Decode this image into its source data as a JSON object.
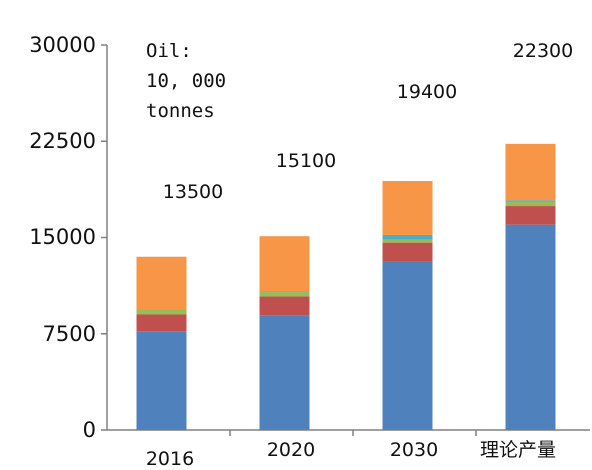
{
  "chart_data": {
    "type": "bar",
    "stacked": true,
    "categories": [
      "2016",
      "2020",
      "2030",
      "理论产量"
    ],
    "series": [
      {
        "values": [
          7700,
          8950,
          13100,
          16000
        ],
        "color": "#4f81bd"
      },
      {
        "values": [
          1300,
          1450,
          1500,
          1450
        ],
        "color": "#c0504d"
      },
      {
        "values": [
          350,
          350,
          250,
          350
        ],
        "color": "#9bbb59"
      },
      {
        "values": [
          0,
          50,
          350,
          100
        ],
        "color": "#4bacc6"
      },
      {
        "values": [
          4150,
          4300,
          4200,
          4400
        ],
        "color": "#f79646"
      }
    ],
    "totals": [
      "13500",
      "15100",
      "19400",
      "22300"
    ],
    "yticks": [
      "0",
      "7500",
      "15000",
      "22500",
      "30000"
    ],
    "ylim": [
      0,
      30000
    ],
    "annotation": [
      "Oil:",
      "10, 000",
      "tonnes"
    ]
  }
}
